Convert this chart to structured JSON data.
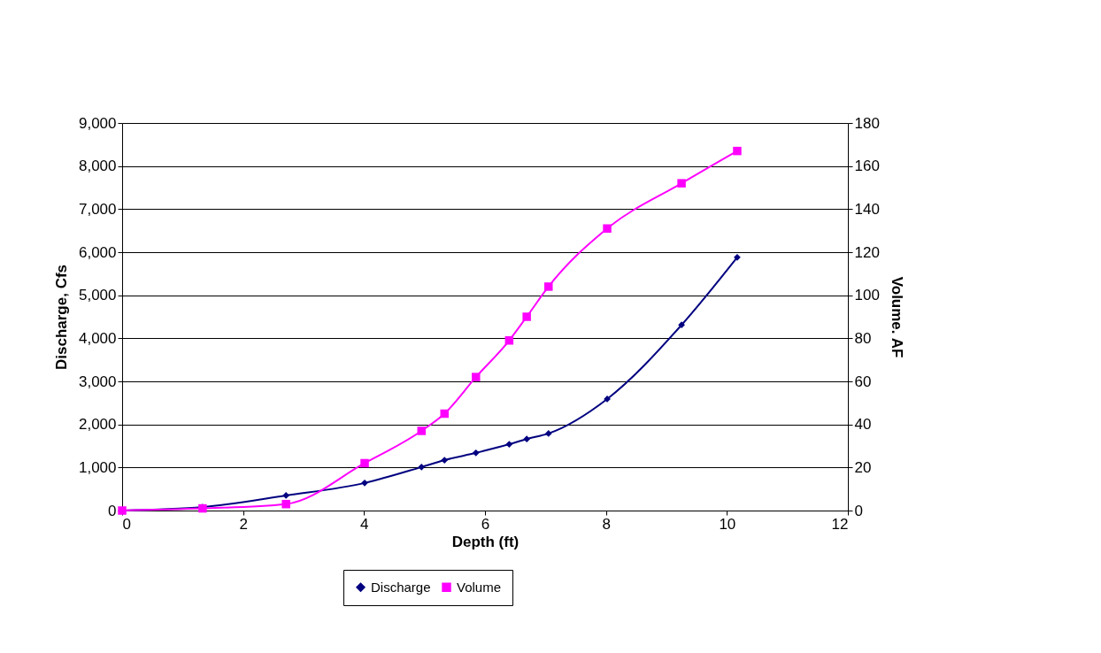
{
  "chart_data": {
    "type": "line",
    "xlabel": "Depth (ft)",
    "ylabel": "Discharge, Cfs",
    "y2label": "Volume. AF",
    "x": [
      0,
      1.33,
      2.71,
      4.01,
      4.95,
      5.33,
      5.85,
      6.4,
      6.69,
      7.05,
      8.02,
      9.25,
      10.17
    ],
    "series": [
      {
        "name": "Discharge",
        "color": "#000080",
        "marker": "diamond",
        "values": [
          0,
          80,
          350,
          640,
          1010,
          1170,
          1340,
          1540,
          1660,
          1790,
          2590,
          4310,
          5880
        ]
      },
      {
        "name": "Volume",
        "color": "#ff00ff",
        "marker": "square",
        "axis": "y2",
        "values": [
          0,
          1,
          3,
          22,
          37,
          45,
          62,
          79,
          90,
          104,
          131,
          152,
          167
        ]
      }
    ],
    "xlim": [
      0,
      12
    ],
    "xticks": [
      0,
      2,
      4,
      6,
      8,
      10,
      12
    ],
    "ylim": [
      0,
      9000
    ],
    "yticks": [
      0,
      {
        "value": 1000,
        "label": "1,000"
      },
      {
        "value": 2000,
        "label": "2,000"
      },
      {
        "value": 3000,
        "label": "3,000"
      },
      {
        "value": 4000,
        "label": "4,000"
      },
      {
        "value": 5000,
        "label": "5,000"
      },
      {
        "value": 6000,
        "label": "6,000"
      },
      {
        "value": 7000,
        "label": "7,000"
      },
      {
        "value": 8000,
        "label": "8,000"
      },
      {
        "value": 9000,
        "label": "9,000"
      }
    ],
    "y2lim": [
      0,
      180
    ],
    "y2ticks": [
      0,
      20,
      40,
      60,
      80,
      100,
      120,
      140,
      160,
      180
    ],
    "grid": "y",
    "legend": "bottom"
  }
}
